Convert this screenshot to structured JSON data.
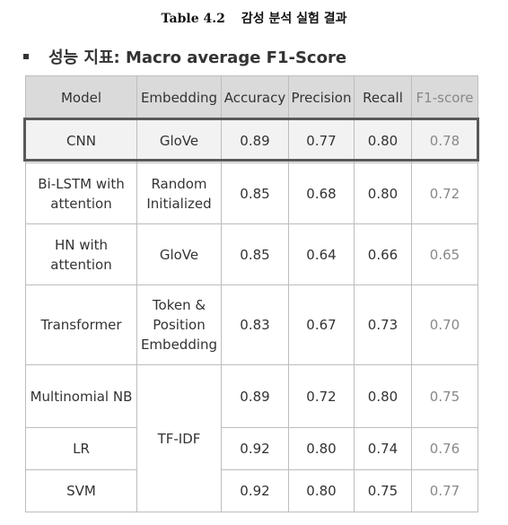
{
  "caption": {
    "label": "Table 4.2",
    "title": "감성 분석 실험 결과"
  },
  "heading": {
    "text": "성능 지표: Macro average F1-Score"
  },
  "table": {
    "headers": {
      "model": "Model",
      "embedding": "Embedding",
      "accuracy": "Accuracy",
      "precision": "Precision",
      "recall": "Recall",
      "f1": "F1-score"
    },
    "rows": [
      {
        "model": "CNN",
        "embedding": "GloVe",
        "accuracy": "0.89",
        "precision": "0.77",
        "recall": "0.80",
        "f1": "0.78"
      },
      {
        "model": "Bi-LSTM with attention",
        "embedding": "Random Initialized",
        "accuracy": "0.85",
        "precision": "0.68",
        "recall": "0.80",
        "f1": "0.72"
      },
      {
        "model": "HN with attention",
        "embedding": "GloVe",
        "accuracy": "0.85",
        "precision": "0.64",
        "recall": "0.66",
        "f1": "0.65"
      },
      {
        "model": "Transformer",
        "embedding": "Token & Position Embedding",
        "accuracy": "0.83",
        "precision": "0.67",
        "recall": "0.73",
        "f1": "0.70"
      },
      {
        "model": "Multinomial NB",
        "embedding": "TF-IDF",
        "accuracy": "0.89",
        "precision": "0.72",
        "recall": "0.80",
        "f1": "0.75"
      },
      {
        "model": "LR",
        "embedding": "TF-IDF",
        "accuracy": "0.92",
        "precision": "0.80",
        "recall": "0.74",
        "f1": "0.76"
      },
      {
        "model": "SVM",
        "embedding": "TF-IDF",
        "accuracy": "0.92",
        "precision": "0.80",
        "recall": "0.75",
        "f1": "0.77"
      }
    ],
    "highlighted_row": "CNN"
  }
}
